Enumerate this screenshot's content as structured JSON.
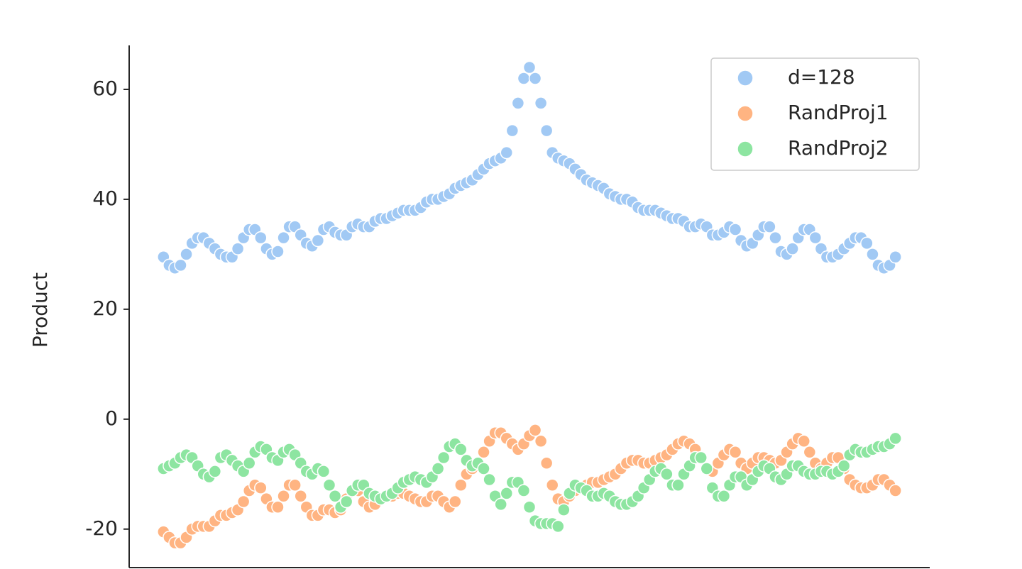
{
  "chart_data": {
    "type": "scatter",
    "ylabel": "Product",
    "x": [
      -64,
      -63,
      -62,
      -61,
      -60,
      -59,
      -58,
      -57,
      -56,
      -55,
      -54,
      -53,
      -52,
      -51,
      -50,
      -49,
      -48,
      -47,
      -46,
      -45,
      -44,
      -43,
      -42,
      -41,
      -40,
      -39,
      -38,
      -37,
      -36,
      -35,
      -34,
      -33,
      -32,
      -31,
      -30,
      -29,
      -28,
      -27,
      -26,
      -25,
      -24,
      -23,
      -22,
      -21,
      -20,
      -19,
      -18,
      -17,
      -16,
      -15,
      -14,
      -13,
      -12,
      -11,
      -10,
      -9,
      -8,
      -7,
      -6,
      -5,
      -4,
      -3,
      -2,
      -1,
      0,
      1,
      2,
      3,
      4,
      5,
      6,
      7,
      8,
      9,
      10,
      11,
      12,
      13,
      14,
      15,
      16,
      17,
      18,
      19,
      20,
      21,
      22,
      23,
      24,
      25,
      26,
      27,
      28,
      29,
      30,
      31,
      32,
      33,
      34,
      35,
      36,
      37,
      38,
      39,
      40,
      41,
      42,
      43,
      44,
      45,
      46,
      47,
      48,
      49,
      50,
      51,
      52,
      53,
      54,
      55,
      56,
      57,
      58,
      59,
      60,
      61,
      62,
      63,
      64
    ],
    "xlim": [
      -70,
      70
    ],
    "ylim": [
      -27,
      68
    ],
    "yticks": [
      -20,
      0,
      20,
      40,
      60
    ],
    "legend_position": "upper right",
    "series": [
      {
        "name": "d=128",
        "color": "#a1c9f4",
        "values": [
          29.5,
          28,
          27.5,
          28,
          30,
          32,
          33,
          33,
          32,
          31,
          30,
          29.5,
          29.5,
          31,
          33,
          34.5,
          34.5,
          33,
          31,
          30,
          30.5,
          33,
          35,
          35,
          33.5,
          32,
          31.5,
          32.5,
          34.5,
          35,
          34,
          33.5,
          33.5,
          35,
          35.5,
          35,
          35,
          36,
          36.5,
          36.5,
          37,
          37.5,
          38,
          38,
          38,
          38.5,
          39.5,
          40,
          40,
          40.5,
          41,
          42,
          42.5,
          43,
          43.5,
          44.5,
          45.5,
          46.5,
          47,
          47.5,
          48.5,
          52.5,
          57.5,
          62,
          64,
          62,
          57.5,
          52.5,
          48.5,
          47.5,
          47,
          46.5,
          45.5,
          44.5,
          43.5,
          43,
          42.5,
          42,
          41,
          40.5,
          40,
          40,
          39.5,
          38.5,
          38,
          38,
          38,
          37.5,
          37,
          36.5,
          36.5,
          36,
          35,
          35,
          35.5,
          35,
          33.5,
          33.5,
          34,
          35,
          34.5,
          32.5,
          31.5,
          32,
          33.5,
          35,
          35,
          33,
          30.5,
          30,
          31,
          33,
          34.5,
          34.5,
          33,
          31,
          29.5,
          29.5,
          30,
          31,
          32,
          33,
          33,
          32,
          30,
          28,
          27.5,
          28,
          29.5
        ]
      },
      {
        "name": "RandProj1",
        "color": "#ffb482",
        "values": [
          -20.5,
          -21.5,
          -22.5,
          -22.5,
          -21.5,
          -20,
          -19.5,
          -19.5,
          -19.5,
          -18.5,
          -17.5,
          -17.5,
          -17,
          -16.5,
          -15,
          -13,
          -12,
          -12.5,
          -14.5,
          -16,
          -16,
          -14,
          -12,
          -12,
          -14,
          -16,
          -17.5,
          -17.5,
          -16.5,
          -16.5,
          -17,
          -16.5,
          -14.5,
          -13,
          -13,
          -15,
          -16,
          -15.5,
          -14.5,
          -14,
          -14,
          -13.5,
          -13.5,
          -14,
          -14.5,
          -15,
          -15,
          -14,
          -14,
          -15,
          -16,
          -15,
          -12,
          -10,
          -9,
          -8,
          -6,
          -4,
          -2.5,
          -2.5,
          -3.5,
          -4.5,
          -5.5,
          -4.5,
          -3,
          -2,
          -4,
          -8,
          -12,
          -14.5,
          -15,
          -14,
          -13,
          -12.5,
          -12,
          -11.5,
          -11.5,
          -11,
          -10.5,
          -10,
          -9,
          -8,
          -7.5,
          -7.5,
          -8,
          -8,
          -7.5,
          -7,
          -6.5,
          -5.5,
          -4.5,
          -4,
          -4.5,
          -5.5,
          -7,
          -9,
          -9.5,
          -8,
          -6.5,
          -5.5,
          -6,
          -8,
          -9,
          -8,
          -7,
          -7,
          -7.5,
          -8,
          -7.5,
          -6,
          -4.5,
          -3.5,
          -4,
          -6,
          -8,
          -9,
          -8,
          -7,
          -7,
          -9,
          -11,
          -12,
          -12.5,
          -12.5,
          -12,
          -11,
          -11,
          -12,
          -13
        ]
      },
      {
        "name": "RandProj2",
        "color": "#8de5a1",
        "values": [
          -9,
          -8.5,
          -8,
          -7,
          -6.5,
          -7,
          -8.5,
          -10,
          -10.5,
          -9.5,
          -7,
          -6.5,
          -7.5,
          -8.5,
          -9.5,
          -8,
          -6,
          -5,
          -5.5,
          -7,
          -7.5,
          -6,
          -5.5,
          -6.5,
          -8,
          -9.5,
          -10,
          -9,
          -9.5,
          -12,
          -14,
          -16,
          -15,
          -13,
          -12,
          -12,
          -13.5,
          -14,
          -14.5,
          -14,
          -13.5,
          -12.5,
          -11.5,
          -11,
          -10.5,
          -11,
          -11.5,
          -10.5,
          -9,
          -7,
          -5,
          -4.5,
          -5.5,
          -7.5,
          -8.5,
          -8,
          -9,
          -11,
          -14,
          -15.5,
          -13.5,
          -11.5,
          -11.5,
          -13,
          -16,
          -18.5,
          -19,
          -19,
          -19,
          -19.5,
          -16.5,
          -13.5,
          -12,
          -12.5,
          -13,
          -14,
          -14,
          -13.5,
          -14,
          -15,
          -15.5,
          -15.5,
          -15,
          -14,
          -12.5,
          -11,
          -9.5,
          -9,
          -10,
          -12,
          -12,
          -10,
          -8.5,
          -7,
          -7,
          -9,
          -12.5,
          -14,
          -14,
          -12,
          -10.5,
          -10.5,
          -12,
          -11,
          -9.5,
          -8.5,
          -9,
          -10.5,
          -11,
          -10,
          -8.5,
          -8.5,
          -9.5,
          -10,
          -10,
          -9.5,
          -9.5,
          -10,
          -9.5,
          -8.5,
          -6.5,
          -5.5,
          -6,
          -6,
          -5.5,
          -5,
          -5,
          -4.5,
          -3.5
        ]
      }
    ]
  }
}
